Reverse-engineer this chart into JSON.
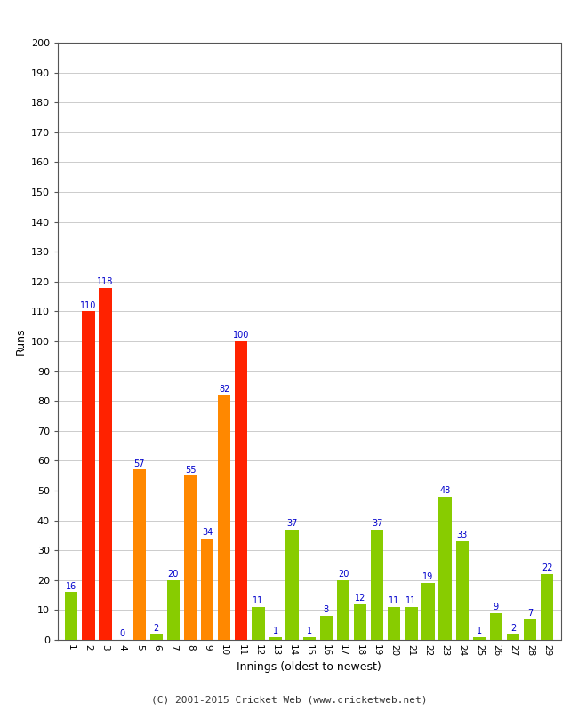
{
  "innings": [
    1,
    2,
    3,
    4,
    5,
    6,
    7,
    8,
    9,
    10,
    11,
    12,
    13,
    14,
    15,
    16,
    17,
    18,
    19,
    20,
    21,
    22,
    23,
    24,
    25,
    26,
    27,
    28,
    29
  ],
  "values": [
    16,
    110,
    118,
    0,
    57,
    2,
    20,
    55,
    34,
    82,
    100,
    11,
    1,
    37,
    1,
    8,
    20,
    12,
    37,
    11,
    11,
    19,
    48,
    33,
    1,
    9,
    2,
    7,
    22
  ],
  "colors": [
    "#88cc00",
    "#ff2200",
    "#ff2200",
    "#88cc00",
    "#ff8800",
    "#88cc00",
    "#88cc00",
    "#ff8800",
    "#ff8800",
    "#ff8800",
    "#ff2200",
    "#88cc00",
    "#88cc00",
    "#88cc00",
    "#88cc00",
    "#88cc00",
    "#88cc00",
    "#88cc00",
    "#88cc00",
    "#88cc00",
    "#88cc00",
    "#88cc00",
    "#88cc00",
    "#88cc00",
    "#88cc00",
    "#88cc00",
    "#88cc00",
    "#88cc00",
    "#88cc00"
  ],
  "ylabel": "Runs",
  "xlabel": "Innings (oldest to newest)",
  "ylim": [
    0,
    200
  ],
  "yticks": [
    0,
    10,
    20,
    30,
    40,
    50,
    60,
    70,
    80,
    90,
    100,
    110,
    120,
    130,
    140,
    150,
    160,
    170,
    180,
    190,
    200
  ],
  "label_color": "#0000cc",
  "bar_edge_color": "none",
  "background_color": "#ffffff",
  "plot_bg_color": "#ffffff",
  "border_color": "#555555",
  "footer": "(C) 2001-2015 Cricket Web (www.cricketweb.net)",
  "grid_color": "#cccccc"
}
